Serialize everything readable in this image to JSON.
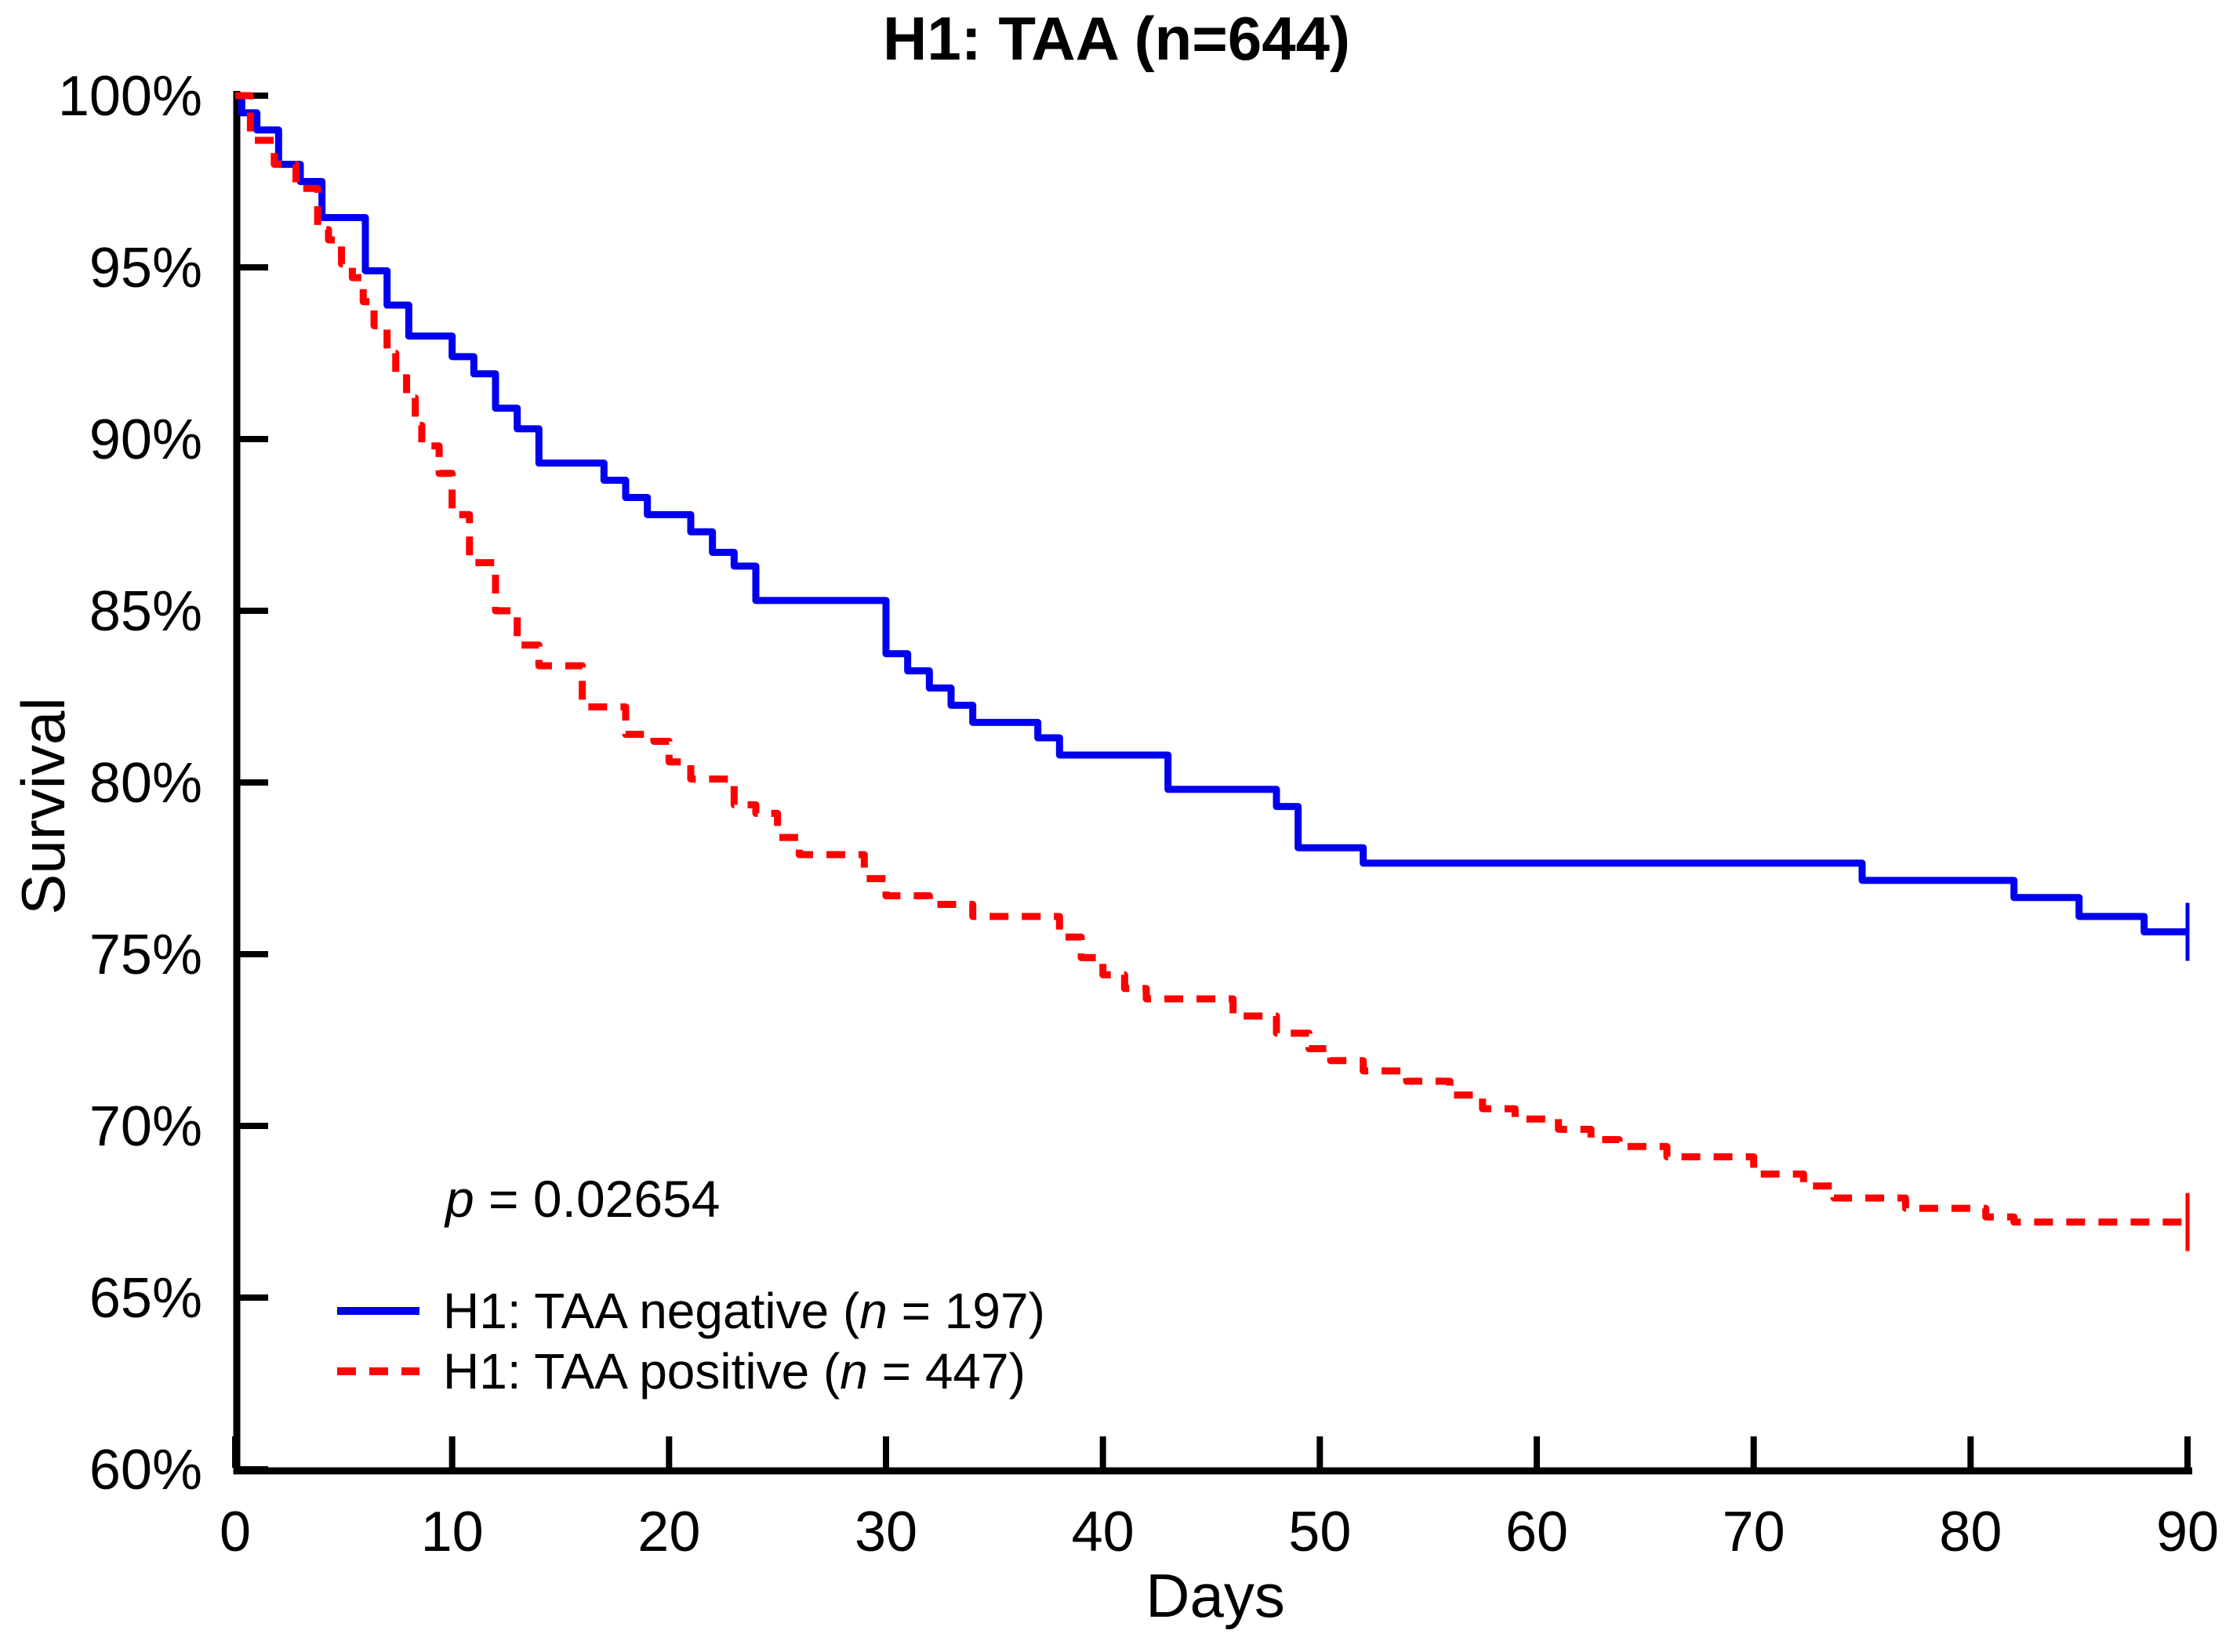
{
  "title": "H1: TAA (n=644)",
  "ylabel": "Survival",
  "xlabel": "Days",
  "pvalue": {
    "symbol": "p",
    "rest": " = 0.02654"
  },
  "legend": [
    {
      "prefix": "H1: TAA negative (",
      "nvar": "n",
      "suffix": " = 197)",
      "color": "#0000EE",
      "dash": "none"
    },
    {
      "prefix": "H1: TAA positive (",
      "nvar": "n",
      "suffix": " = 447)",
      "color": "#FF0000",
      "dash": "24 17"
    }
  ],
  "colors": {
    "negative": "#0000EE",
    "positive": "#FF0000",
    "axis": "#000000"
  },
  "chart_data": {
    "type": "line",
    "subtype": "kaplan-meier-step",
    "title": "H1: TAA (n=644)",
    "xlabel": "Days",
    "ylabel": "Survival",
    "xlim": [
      0,
      90
    ],
    "ylim": [
      60,
      100
    ],
    "x_ticks": [
      0,
      10,
      20,
      30,
      40,
      50,
      60,
      70,
      80,
      90
    ],
    "y_ticks": [
      60,
      65,
      70,
      75,
      80,
      85,
      90,
      95,
      100
    ],
    "y_tick_suffix": "%",
    "grid": false,
    "legend_position": "bottom-left-inside",
    "annotation_p_value": "p = 0.02654",
    "series": [
      {
        "name": "H1: TAA negative (n = 197)",
        "n": 197,
        "color": "#0000EE",
        "dash": "none",
        "censor_at_end_day": 90,
        "steps": [
          [
            0,
            100
          ],
          [
            0.3,
            99.5
          ],
          [
            1,
            99.0
          ],
          [
            2,
            98.0
          ],
          [
            3,
            97.5
          ],
          [
            4,
            96.45
          ],
          [
            6,
            94.9
          ],
          [
            7,
            93.9
          ],
          [
            8,
            93.0
          ],
          [
            10,
            92.4
          ],
          [
            11,
            91.9
          ],
          [
            12,
            90.9
          ],
          [
            13,
            90.3
          ],
          [
            14,
            89.3
          ],
          [
            17,
            88.8
          ],
          [
            18,
            88.3
          ],
          [
            19,
            87.8
          ],
          [
            21,
            87.3
          ],
          [
            22,
            86.7
          ],
          [
            23,
            86.3
          ],
          [
            24,
            85.3
          ],
          [
            30,
            83.75
          ],
          [
            31,
            83.25
          ],
          [
            32,
            82.75
          ],
          [
            33,
            82.25
          ],
          [
            34,
            81.75
          ],
          [
            37,
            81.3
          ],
          [
            38,
            80.8
          ],
          [
            43,
            79.8
          ],
          [
            48,
            79.3
          ],
          [
            49,
            78.1
          ],
          [
            52,
            77.65
          ],
          [
            75,
            77.15
          ],
          [
            82,
            76.65
          ],
          [
            85,
            76.1
          ],
          [
            88,
            75.65
          ]
        ]
      },
      {
        "name": "H1: TAA positive (n = 447)",
        "n": 447,
        "color": "#FF0000",
        "dash": "24 17",
        "censor_at_end_day": 90,
        "steps": [
          [
            0,
            100
          ],
          [
            0.7,
            98.7
          ],
          [
            1.8,
            98.0
          ],
          [
            2.8,
            97.3
          ],
          [
            3.8,
            96.1
          ],
          [
            4.3,
            95.8
          ],
          [
            4.9,
            95.1
          ],
          [
            5.4,
            94.7
          ],
          [
            5.9,
            94.0
          ],
          [
            6.4,
            93.3
          ],
          [
            7,
            92.5
          ],
          [
            7.4,
            91.9
          ],
          [
            7.9,
            91.2
          ],
          [
            8.3,
            90.4
          ],
          [
            8.6,
            89.8
          ],
          [
            9.4,
            89.0
          ],
          [
            10,
            87.8
          ],
          [
            10.8,
            86.4
          ],
          [
            12,
            85.0
          ],
          [
            13,
            84.0
          ],
          [
            14,
            83.4
          ],
          [
            16,
            82.2
          ],
          [
            18,
            81.4
          ],
          [
            19.3,
            81.2
          ],
          [
            20,
            80.6
          ],
          [
            21,
            80.1
          ],
          [
            23,
            79.35
          ],
          [
            24,
            79.1
          ],
          [
            25,
            78.4
          ],
          [
            26,
            77.9
          ],
          [
            29,
            77.2
          ],
          [
            30,
            76.7
          ],
          [
            32,
            76.45
          ],
          [
            34,
            76.1
          ],
          [
            38,
            75.5
          ],
          [
            39,
            74.9
          ],
          [
            40,
            74.4
          ],
          [
            41,
            74.0
          ],
          [
            42,
            73.7
          ],
          [
            46,
            73.2
          ],
          [
            48,
            72.7
          ],
          [
            49.5,
            72.25
          ],
          [
            50.5,
            71.9
          ],
          [
            52,
            71.6
          ],
          [
            54,
            71.3
          ],
          [
            56,
            70.9
          ],
          [
            57.5,
            70.5
          ],
          [
            59,
            70.2
          ],
          [
            61,
            69.9
          ],
          [
            62.5,
            69.6
          ],
          [
            63.8,
            69.4
          ],
          [
            66,
            69.1
          ],
          [
            70,
            68.6
          ],
          [
            72.3,
            68.25
          ],
          [
            73.7,
            67.9
          ],
          [
            77,
            67.6
          ],
          [
            80.7,
            67.35
          ],
          [
            82,
            67.2
          ]
        ]
      }
    ]
  },
  "layout_note_values": {
    "total_n": 644,
    "p_value": 0.02654
  }
}
